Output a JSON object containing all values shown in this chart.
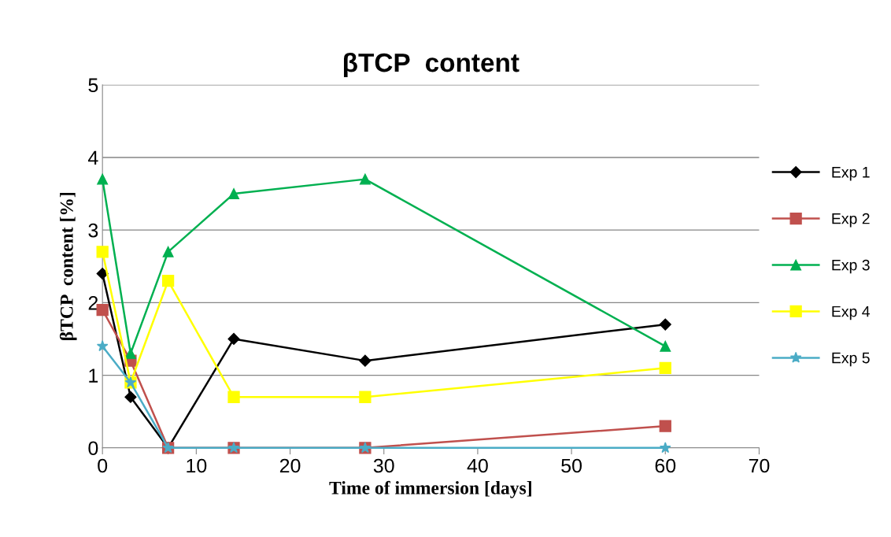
{
  "chart_data": {
    "type": "line",
    "title": "βTCP  content",
    "xlabel": "Time of immersion [days]",
    "ylabel": "βTCP  content [%]",
    "x": [
      0,
      3,
      7,
      14,
      28,
      60
    ],
    "series": [
      {
        "name": "Exp 1",
        "color": "#000000",
        "marker": "diamond",
        "values": [
          2.4,
          0.7,
          0,
          1.5,
          1.2,
          1.7
        ]
      },
      {
        "name": "Exp 2",
        "color": "#c0504d",
        "marker": "square",
        "values": [
          1.9,
          1.2,
          0,
          0,
          0,
          0.3
        ]
      },
      {
        "name": "Exp 3",
        "color": "#00b050",
        "marker": "triangle",
        "values": [
          3.7,
          1.3,
          2.7,
          3.5,
          3.7,
          1.4
        ]
      },
      {
        "name": "Exp 4",
        "color": "#ffff00",
        "marker": "square",
        "values": [
          2.7,
          0.9,
          2.3,
          0.7,
          0.7,
          1.1
        ]
      },
      {
        "name": "Exp 5",
        "color": "#4bacc6",
        "marker": "star",
        "values": [
          1.4,
          0.9,
          0,
          0,
          0,
          0
        ]
      }
    ],
    "xlim": [
      0,
      70
    ],
    "xticks": [
      0,
      10,
      20,
      30,
      40,
      50,
      60,
      70
    ],
    "ylim": [
      0,
      5
    ],
    "yticks": [
      0,
      1,
      2,
      3,
      4,
      5
    ],
    "grid": "y",
    "legend": "right"
  }
}
